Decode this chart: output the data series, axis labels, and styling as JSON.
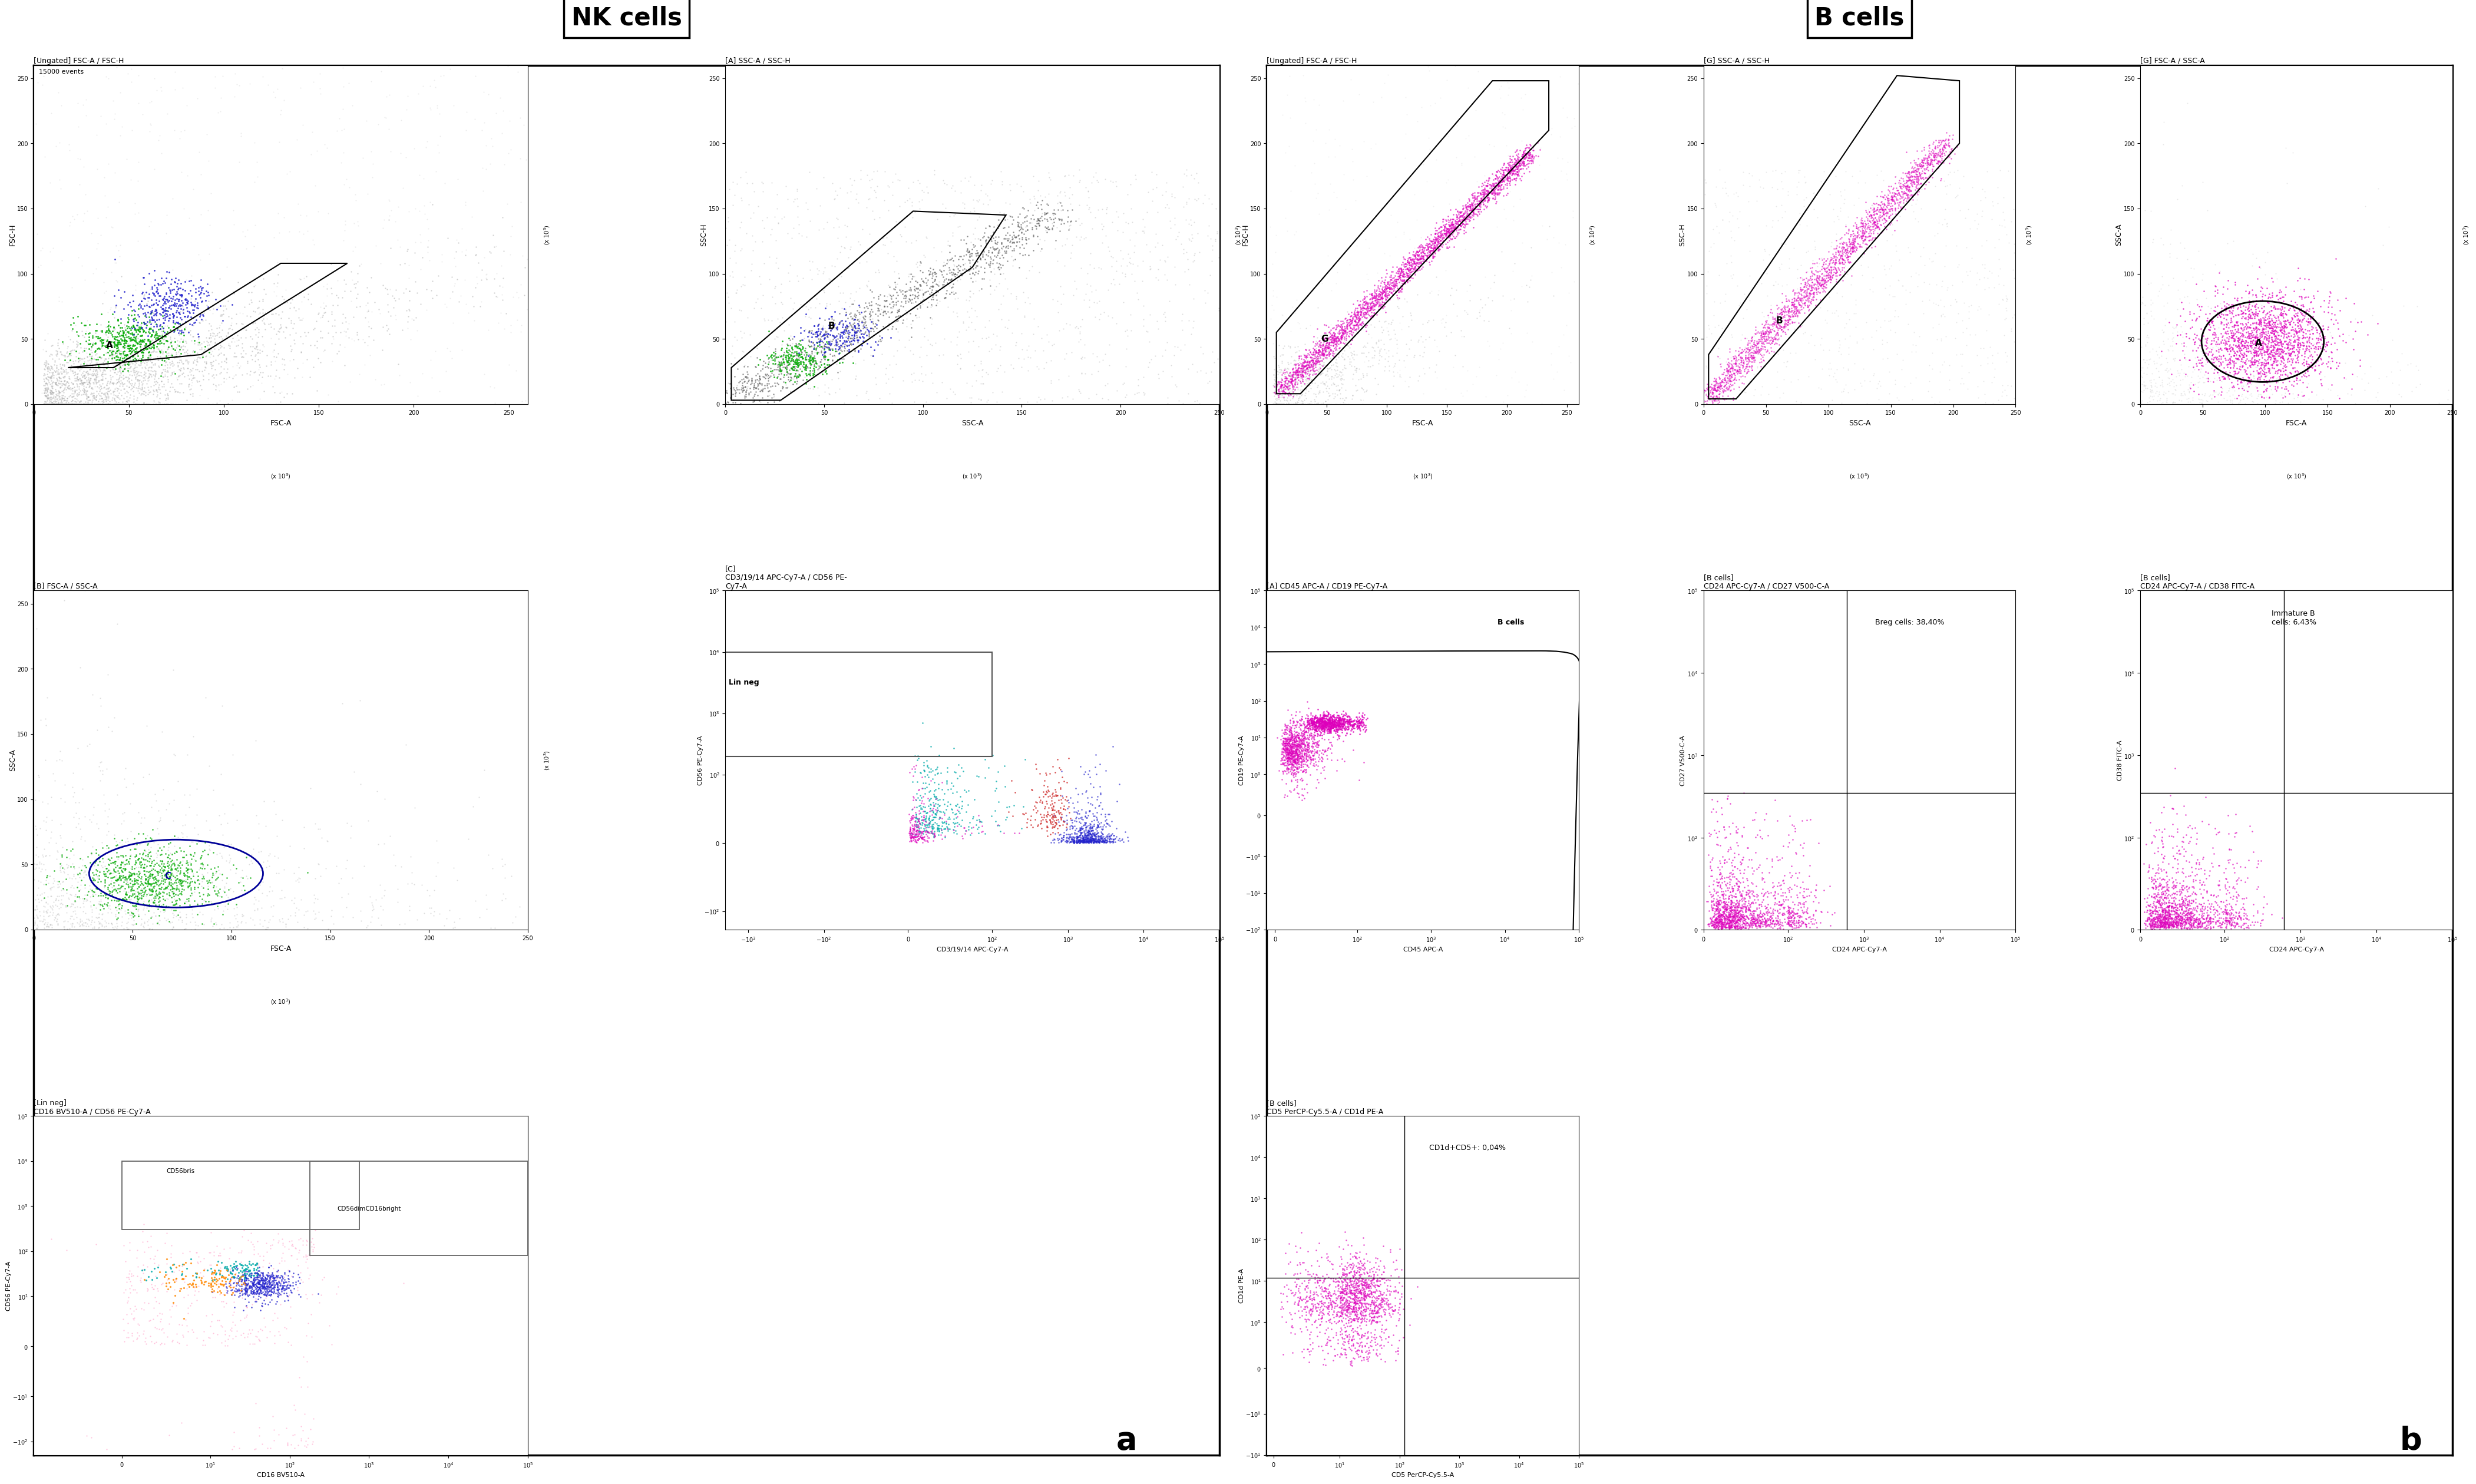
{
  "title_nk": "NK cells",
  "title_b": "B cells",
  "label_a": "a",
  "label_b": "b",
  "bg_color": "#ffffff",
  "nk_plots": [
    {
      "title": "[Ungated] FSC-A / FSC-H",
      "xlabel": "FSC-A",
      "ylabel": "FSC-H",
      "note": "15000 events",
      "gate_label": "A"
    },
    {
      "title": "[A] SSC-A / SSC-H",
      "xlabel": "SSC-A",
      "ylabel": "SSC-H",
      "gate_label": "B"
    },
    {
      "title": "[B] FSC-A / SSC-A",
      "xlabel": "FSC-A",
      "ylabel": "SSC-A",
      "gate_label": "C"
    },
    {
      "title": "[C]\nCD3/19/14 APC-Cy7-A / CD56 PE-\nCy7-A",
      "xlabel": "CD3/19/14 APC-Cy7-A",
      "ylabel": "CD56 PE-Cy7-A",
      "gate_label": "Lin neg"
    },
    {
      "title": "[Lin neg]\nCD16 BV510-A / CD56 PE-Cy7-A",
      "xlabel": "CD16 BV510-A",
      "ylabel": "CD56 PE-Cy7-A",
      "sublabels": [
        "CD56bris",
        "CD56dimCD16bright"
      ]
    }
  ],
  "b_plots": [
    {
      "title": "[Ungated] FSC-A / FSC-H",
      "xlabel": "FSC-A",
      "ylabel": "FSC-H",
      "gate_label": "G"
    },
    {
      "title": "[G] SSC-A / SSC-H",
      "xlabel": "SSC-A",
      "ylabel": "SSC-H",
      "gate_label": "B"
    },
    {
      "title": "[G] FSC-A / SSC-A",
      "xlabel": "FSC-A",
      "ylabel": "SSC-A",
      "gate_label": "A"
    },
    {
      "title": "[A] CD45 APC-A / CD19 PE-Cy7-A",
      "xlabel": "CD45 APC-A",
      "ylabel": "CD19 PE-Cy7-A",
      "gate_label": "B cells"
    },
    {
      "title": "[B cells]\nCD24 APC-Cy7-A / CD27 V500-C-A",
      "xlabel": "CD24 APC-Cy7-A",
      "ylabel": "CD27 V500-C-A",
      "note": "Breg cells: 38,40%"
    },
    {
      "title": "[B cells]\nCD24 APC-Cy7-A / CD38 FITC-A",
      "xlabel": "CD24 APC-Cy7-A",
      "ylabel": "CD38 FITC-A",
      "note": "Immature B\ncells: 6,43%"
    },
    {
      "title": "[B cells]\nCD5 PerCP-Cy5.5-A / CD1d PE-A",
      "xlabel": "CD5 PerCP-Cy5.5-A",
      "ylabel": "CD1d PE-A",
      "note": "CD1d+CD5+: 0,04%"
    }
  ],
  "colors": {
    "gray_dots": "#aaaaaa",
    "green_dots": "#00aa00",
    "blue_dots": "#2222cc",
    "cyan_dots": "#00aaaa",
    "magenta_dots": "#dd00bb",
    "orange_dots": "#ff8800",
    "pink_dots": "#ff88bb",
    "red_dots": "#cc2222"
  }
}
